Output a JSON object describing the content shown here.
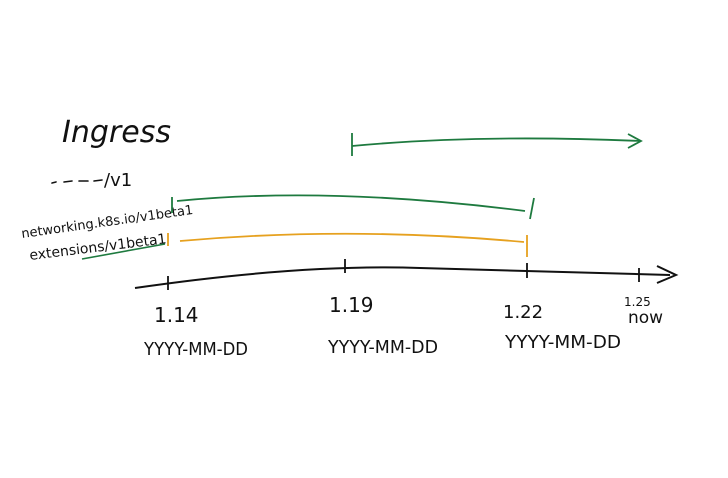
{
  "diagram": {
    "title": "Ingress",
    "api_versions": {
      "v1": "/v1",
      "networking": "networking.k8s.io/v1beta1",
      "extensions": "extensions/v1beta1"
    },
    "timeline": {
      "ticks": [
        {
          "version": "1.14",
          "date": "YYYY-MM-DD"
        },
        {
          "version": "1.19",
          "date": "YYYY-MM-DD"
        },
        {
          "version": "1.22",
          "date": "YYYY-MM-DD"
        },
        {
          "version": "1.25",
          "note": "now"
        }
      ]
    },
    "spans": [
      {
        "api": "v1",
        "from": "1.19",
        "to": "1.25",
        "color": "#1e7a3f",
        "ongoing": true
      },
      {
        "api": "networking.k8s.io/v1beta1",
        "from": "1.14",
        "to": "1.22",
        "color": "#1e7a3f",
        "ongoing": false
      },
      {
        "api": "extensions/v1beta1",
        "from": "1.14",
        "to": "1.22",
        "color": "#e6a11f",
        "ongoing": false
      }
    ],
    "colors": {
      "ink": "#111111",
      "green": "#1e7a3f",
      "orange": "#e6a11f"
    }
  }
}
